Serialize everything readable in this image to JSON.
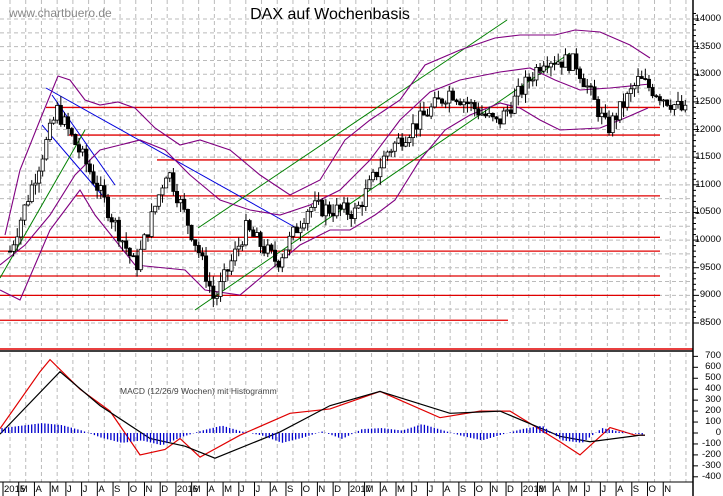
{
  "header": {
    "title": "DAX auf Wochenbasis",
    "watermark": "www.chartbuero.de"
  },
  "colors": {
    "background": "#ffffff",
    "grid": "#bbbbbb",
    "support_resistance": "#e00000",
    "uptrend_channel": "#008000",
    "downtrend_channel": "#0000dd",
    "bollinger": "#800080",
    "candle": "#000000",
    "macd_line": "#e00000",
    "signal_line": "#000000",
    "histogram": "#0000cc"
  },
  "chart_data": [
    {
      "type": "candlestick",
      "title": "DAX auf Wochenbasis",
      "xlabel": "",
      "ylabel": "",
      "ylim": [
        8400,
        14300
      ],
      "grid": true,
      "y_ticks": [
        8500,
        9000,
        9500,
        10000,
        10500,
        11000,
        11500,
        12000,
        12500,
        13000,
        13500,
        14000
      ],
      "x_ticks": [
        "2015",
        "M",
        "A",
        "M",
        "J",
        "J",
        "A",
        "S",
        "O",
        "N",
        "D",
        "2016",
        "M",
        "A",
        "M",
        "J",
        "J",
        "A",
        "S",
        "O",
        "N",
        "D",
        "2017",
        "M",
        "A",
        "M",
        "J",
        "J",
        "A",
        "S",
        "O",
        "N",
        "D",
        "2018",
        "M",
        "A",
        "M",
        "J",
        "J",
        "A",
        "S",
        "O",
        "N"
      ],
      "horizontal_levels": [
        12400,
        11900,
        11450,
        10800,
        10050,
        9800,
        9350,
        9000,
        8550
      ],
      "overlays": [
        "Bollinger Bands",
        "green rising trend channel",
        "blue falling trend lines",
        "red horizontal support/resistance lines"
      ],
      "approx_close_path": [
        {
          "x": "2015-01",
          "y": 9800
        },
        {
          "x": "2015-04",
          "y": 12350
        },
        {
          "x": "2015-06",
          "y": 11300
        },
        {
          "x": "2015-08",
          "y": 10100
        },
        {
          "x": "2015-09",
          "y": 9500
        },
        {
          "x": "2015-11",
          "y": 11300
        },
        {
          "x": "2016-01",
          "y": 9800
        },
        {
          "x": "2016-02",
          "y": 8900
        },
        {
          "x": "2016-04",
          "y": 10200
        },
        {
          "x": "2016-06",
          "y": 9600
        },
        {
          "x": "2016-08",
          "y": 10600
        },
        {
          "x": "2016-11",
          "y": 10500
        },
        {
          "x": "2017-01",
          "y": 11600
        },
        {
          "x": "2017-05",
          "y": 12700
        },
        {
          "x": "2017-08",
          "y": 12100
        },
        {
          "x": "2017-11",
          "y": 13300
        },
        {
          "x": "2018-01",
          "y": 13200
        },
        {
          "x": "2018-03",
          "y": 12000
        },
        {
          "x": "2018-05",
          "y": 12900
        },
        {
          "x": "2018-07",
          "y": 12500
        },
        {
          "x": "2018-08",
          "y": 12300
        }
      ]
    },
    {
      "type": "line",
      "title": "MACD (12/26/9 Wochen) mit Histogramm",
      "ylim": [
        -420,
        720
      ],
      "y_ticks": [
        700,
        600,
        500,
        400,
        300,
        200,
        100,
        0,
        -100,
        -200,
        -300,
        -400
      ],
      "series": [
        {
          "name": "MACD",
          "color": "#e00000",
          "points": [
            [
              0,
              40
            ],
            [
              40,
              560
            ],
            [
              50,
              670
            ],
            [
              80,
              400
            ],
            [
              110,
              200
            ],
            [
              140,
              -200
            ],
            [
              165,
              -150
            ],
            [
              180,
              -50
            ],
            [
              200,
              -220
            ],
            [
              240,
              -20
            ],
            [
              290,
              180
            ],
            [
              330,
              220
            ],
            [
              380,
              380
            ],
            [
              440,
              140
            ],
            [
              480,
              200
            ],
            [
              510,
              200
            ],
            [
              560,
              -80
            ],
            [
              580,
              -200
            ],
            [
              610,
              50
            ],
            [
              635,
              -20
            ],
            [
              645,
              -20
            ]
          ]
        },
        {
          "name": "Signal",
          "color": "#000000",
          "points": [
            [
              0,
              -10
            ],
            [
              60,
              560
            ],
            [
              100,
              250
            ],
            [
              150,
              -50
            ],
            [
              185,
              -120
            ],
            [
              215,
              -230
            ],
            [
              280,
              10
            ],
            [
              330,
              250
            ],
            [
              380,
              380
            ],
            [
              450,
              180
            ],
            [
              500,
              200
            ],
            [
              560,
              -30
            ],
            [
              590,
              -80
            ],
            [
              640,
              -20
            ],
            [
              645,
              -20
            ]
          ]
        },
        {
          "name": "Histogramm",
          "color": "#0000cc",
          "type": "bar",
          "values_approx": [
            100,
            150,
            200,
            160,
            50,
            -100,
            -200,
            -150,
            -250,
            -80,
            50,
            150,
            30,
            -50,
            -200,
            -100,
            30,
            -120,
            80,
            100,
            50,
            180,
            60,
            -60,
            -150,
            -30,
            80,
            150,
            -150,
            -200,
            100,
            20,
            -30
          ]
        }
      ]
    }
  ],
  "axis": {
    "price_ticks": [
      "14000",
      "13500",
      "13000",
      "12500",
      "12000",
      "11500",
      "11000",
      "10500",
      "10000",
      "9500",
      "9000",
      "8500"
    ],
    "macd_ticks": [
      "700",
      "600",
      "500",
      "400",
      "300",
      "200",
      "100",
      "0",
      "-100",
      "-200",
      "-300",
      "-400"
    ],
    "months": [
      "2015",
      "M",
      "A",
      "M",
      "J",
      "J",
      "A",
      "S",
      "O",
      "N",
      "D",
      "2016",
      "M",
      "A",
      "M",
      "J",
      "J",
      "A",
      "S",
      "O",
      "N",
      "D",
      "2017",
      "M",
      "A",
      "M",
      "J",
      "J",
      "A",
      "S",
      "O",
      "N",
      "D",
      "2018",
      "M",
      "A",
      "M",
      "J",
      "J",
      "A",
      "S",
      "O",
      "N"
    ]
  },
  "macd_panel": {
    "label": "MACD (12/26/9 Wochen) mit Histogramm"
  }
}
